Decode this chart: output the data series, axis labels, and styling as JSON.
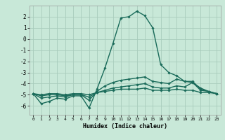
{
  "title": "",
  "xlabel": "Humidex (Indice chaleur)",
  "ylabel": "",
  "bg_color": "#c8e8d8",
  "grid_color": "#a8ccbc",
  "line_color": "#1a6b5a",
  "xlim": [
    -0.5,
    23.5
  ],
  "ylim": [
    -6.8,
    3.0
  ],
  "yticks": [
    -6,
    -5,
    -4,
    -3,
    -2,
    -1,
    0,
    1,
    2
  ],
  "xticks": [
    0,
    1,
    2,
    3,
    4,
    5,
    6,
    7,
    8,
    9,
    10,
    11,
    12,
    13,
    14,
    15,
    16,
    17,
    18,
    19,
    20,
    21,
    22,
    23
  ],
  "series": [
    {
      "x": [
        0,
        1,
        2,
        3,
        4,
        5,
        6,
        7,
        8,
        9,
        10,
        11,
        12,
        13,
        14,
        15,
        16,
        17,
        18,
        19,
        20,
        21,
        22,
        23
      ],
      "y": [
        -4.9,
        -5.8,
        -5.6,
        -5.3,
        -5.4,
        -5.1,
        -5.1,
        -6.2,
        -4.5,
        -2.6,
        -0.4,
        1.9,
        2.0,
        2.5,
        2.1,
        1.0,
        -2.3,
        -3.0,
        -3.3,
        -3.8,
        -3.9,
        -4.4,
        -4.7,
        -4.9
      ]
    },
    {
      "x": [
        0,
        1,
        2,
        3,
        4,
        5,
        6,
        7,
        8,
        9,
        10,
        11,
        12,
        13,
        14,
        15,
        16,
        17,
        18,
        19,
        20,
        21,
        22,
        23
      ],
      "y": [
        -4.9,
        -5.3,
        -5.2,
        -5.1,
        -5.2,
        -5.0,
        -5.0,
        -5.5,
        -4.7,
        -4.2,
        -3.9,
        -3.7,
        -3.6,
        -3.5,
        -3.4,
        -3.8,
        -3.9,
        -4.0,
        -3.6,
        -3.8,
        -3.8,
        -4.5,
        -4.7,
        -4.9
      ]
    },
    {
      "x": [
        0,
        1,
        2,
        3,
        4,
        5,
        6,
        7,
        8,
        9,
        10,
        11,
        12,
        13,
        14,
        15,
        16,
        17,
        18,
        19,
        20,
        21,
        22,
        23
      ],
      "y": [
        -4.9,
        -5.1,
        -5.0,
        -5.0,
        -5.1,
        -5.0,
        -5.0,
        -5.2,
        -4.8,
        -4.6,
        -4.4,
        -4.3,
        -4.2,
        -4.1,
        -4.0,
        -4.3,
        -4.4,
        -4.4,
        -4.2,
        -4.3,
        -3.9,
        -4.6,
        -4.7,
        -4.9
      ]
    },
    {
      "x": [
        0,
        1,
        2,
        3,
        4,
        5,
        6,
        7,
        8,
        9,
        10,
        11,
        12,
        13,
        14,
        15,
        16,
        17,
        18,
        19,
        20,
        21,
        22,
        23
      ],
      "y": [
        -4.9,
        -5.0,
        -4.9,
        -4.9,
        -5.0,
        -4.9,
        -4.9,
        -5.0,
        -4.8,
        -4.7,
        -4.6,
        -4.5,
        -4.5,
        -4.5,
        -4.4,
        -4.6,
        -4.6,
        -4.6,
        -4.5,
        -4.6,
        -4.6,
        -4.8,
        -4.8,
        -4.9
      ]
    }
  ]
}
